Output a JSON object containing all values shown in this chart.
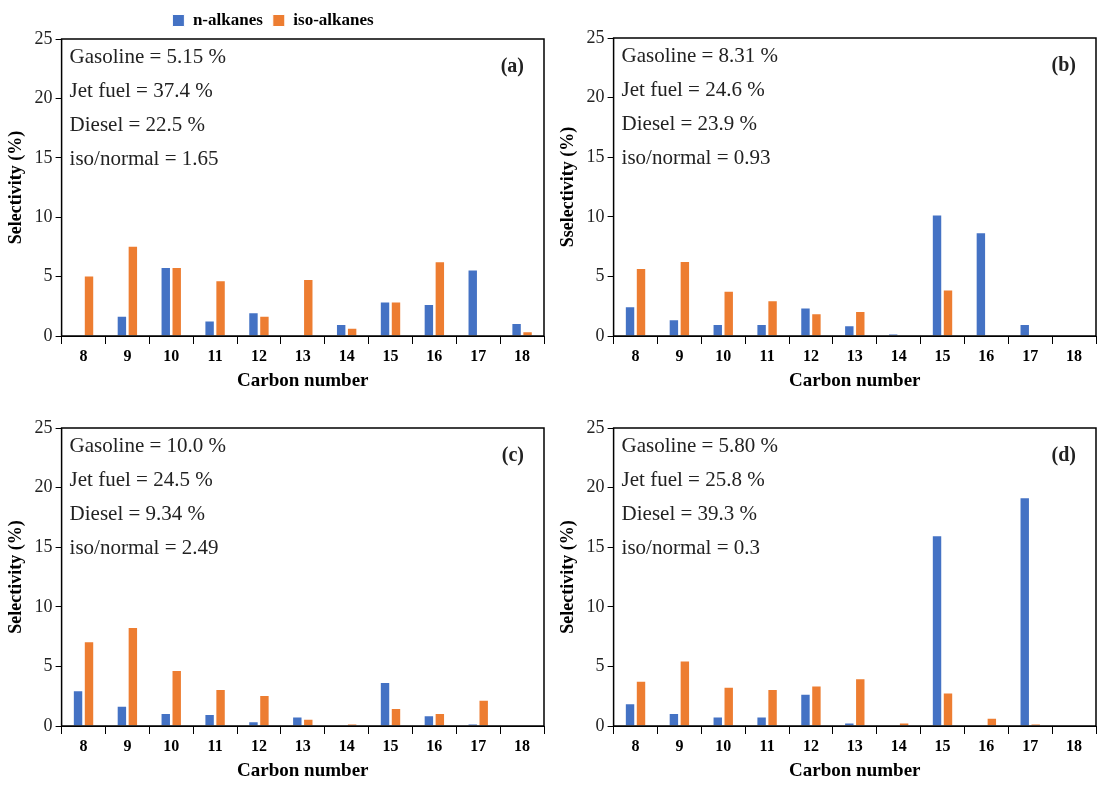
{
  "chart_data": [
    {
      "type": "bar",
      "xlabel": "Carbon number",
      "ylabel": "Selectivity (%)",
      "categories": [
        "8",
        "9",
        "10",
        "11",
        "12",
        "13",
        "14",
        "15",
        "16",
        "17",
        "18"
      ],
      "ylim": [
        0,
        25
      ],
      "yticks": [
        0,
        5,
        10,
        15,
        20,
        25
      ],
      "legend": "top",
      "annotations": [
        "Gasoline = 5.15 %",
        "Jet fuel = 37.4 %",
        "Diesel = 22.5 %",
        "iso/normal = 1.65",
        "(a)"
      ],
      "series": [
        {
          "name": "n-alkanes",
          "color": "#4472c4",
          "values": [
            0,
            1.7,
            5.8,
            1.3,
            2.0,
            0,
            1.0,
            2.9,
            2.7,
            5.6,
            1.1
          ]
        },
        {
          "name": "iso-alkanes",
          "color": "#ed7d31",
          "values": [
            5.1,
            7.6,
            5.8,
            4.7,
            1.7,
            4.8,
            0.7,
            2.9,
            6.3,
            0,
            0.4
          ]
        }
      ]
    },
    {
      "type": "bar",
      "xlabel": "Carbon number",
      "ylabel": "Sselectivity (%)",
      "categories": [
        "8",
        "9",
        "10",
        "11",
        "12",
        "13",
        "14",
        "15",
        "16",
        "17",
        "18"
      ],
      "ylim": [
        0,
        25
      ],
      "yticks": [
        0,
        5,
        10,
        15,
        20,
        25
      ],
      "annotations": [
        "Gasoline = 8.31 %",
        "Jet fuel = 24.6 %",
        "Diesel = 23.9 %",
        "iso/normal = 0.93",
        "(b)"
      ],
      "series": [
        {
          "color": "#4472c4",
          "values": [
            2.5,
            1.4,
            1.0,
            1.0,
            2.4,
            0.9,
            0.2,
            10.2,
            8.7,
            1.0,
            0
          ]
        },
        {
          "color": "#ed7d31",
          "values": [
            5.7,
            6.3,
            3.8,
            3.0,
            1.9,
            2.1,
            0,
            3.9,
            0,
            0,
            0
          ]
        }
      ]
    },
    {
      "type": "bar",
      "xlabel": "Carbon number",
      "ylabel": "Selectivity (%)",
      "categories": [
        "8",
        "9",
        "10",
        "11",
        "12",
        "13",
        "14",
        "15",
        "16",
        "17",
        "18"
      ],
      "ylim": [
        0,
        25
      ],
      "yticks": [
        0,
        5,
        10,
        15,
        20,
        25
      ],
      "annotations": [
        "Gasoline = 10.0 %",
        "Jet fuel = 24.5 %",
        "Diesel = 9.34 %",
        "iso/normal = 2.49",
        "(c)"
      ],
      "series": [
        {
          "color": "#4472c4",
          "values": [
            3.0,
            1.7,
            1.1,
            1.0,
            0.4,
            0.8,
            0,
            3.7,
            0.9,
            0.2,
            0
          ]
        },
        {
          "color": "#ed7d31",
          "values": [
            7.1,
            8.3,
            4.7,
            3.1,
            2.6,
            0.6,
            0.2,
            1.5,
            1.1,
            2.2,
            0
          ]
        }
      ]
    },
    {
      "type": "bar",
      "xlabel": "Carbon number",
      "ylabel": "Selectivity (%)",
      "categories": [
        "8",
        "9",
        "10",
        "11",
        "12",
        "13",
        "14",
        "15",
        "16",
        "17",
        "18"
      ],
      "ylim": [
        0,
        25
      ],
      "yticks": [
        0,
        5,
        10,
        15,
        20,
        25
      ],
      "annotations": [
        "Gasoline = 5.80 %",
        "Jet fuel = 25.8 %",
        "Diesel = 39.3 %",
        "iso/normal = 0.3",
        "(d)"
      ],
      "series": [
        {
          "color": "#4472c4",
          "values": [
            1.9,
            1.1,
            0.8,
            0.8,
            2.7,
            0.3,
            0,
            16.0,
            0,
            19.2,
            0
          ]
        },
        {
          "color": "#ed7d31",
          "values": [
            3.8,
            5.5,
            3.3,
            3.1,
            3.4,
            4.0,
            0.3,
            2.8,
            0.7,
            0.2,
            0
          ]
        }
      ]
    }
  ]
}
